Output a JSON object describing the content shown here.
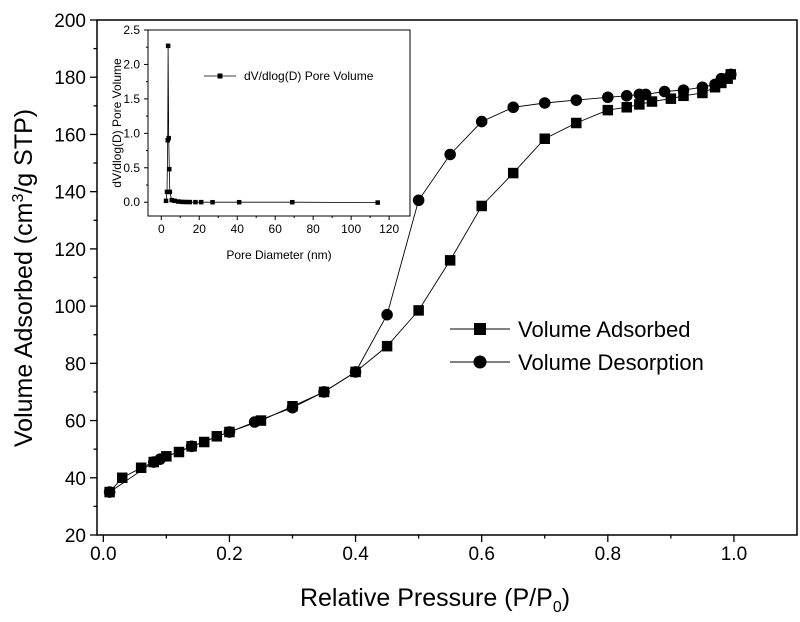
{
  "chart_data": [
    {
      "type": "line",
      "role": "main",
      "title": "",
      "xlabel": "Relative Pressure (P/P",
      "xlabel_sub": "0",
      "xlabel_end": ")",
      "ylabel": "Volume Adsorbed (cm",
      "ylabel_sup": "3",
      "ylabel_end": "/g STP)",
      "xlim": [
        -0.01,
        1.1
      ],
      "ylim": [
        20,
        200
      ],
      "xticks": [
        "0.0",
        "0.2",
        "0.4",
        "0.6",
        "0.8",
        "1.0"
      ],
      "xtick_values": [
        0.0,
        0.2,
        0.4,
        0.6,
        0.8,
        1.0
      ],
      "yticks": [
        "20",
        "40",
        "60",
        "80",
        "100",
        "120",
        "140",
        "160",
        "180",
        "200"
      ],
      "ytick_values": [
        20,
        40,
        60,
        80,
        100,
        120,
        140,
        160,
        180,
        200
      ],
      "grid": false,
      "legend_position": "center-right",
      "series": [
        {
          "name": "Volume Adsorbed",
          "marker": "square",
          "x": [
            0.01,
            0.03,
            0.06,
            0.08,
            0.1,
            0.12,
            0.14,
            0.16,
            0.18,
            0.2,
            0.25,
            0.3,
            0.35,
            0.4,
            0.45,
            0.5,
            0.55,
            0.6,
            0.65,
            0.7,
            0.75,
            0.8,
            0.83,
            0.85,
            0.87,
            0.9,
            0.92,
            0.95,
            0.97,
            0.98,
            0.99,
            0.995
          ],
          "y": [
            35,
            40,
            43.5,
            45.5,
            47.5,
            49,
            51,
            52.5,
            54.5,
            56,
            60,
            65,
            70,
            77,
            86,
            98.5,
            116,
            135,
            146.5,
            158.5,
            164,
            168.5,
            169.5,
            170.5,
            171.5,
            172.5,
            173.5,
            174.5,
            176.5,
            178,
            179.5,
            181
          ]
        },
        {
          "name": "Volume Desorption",
          "marker": "circle",
          "x": [
            0.995,
            0.98,
            0.97,
            0.95,
            0.92,
            0.89,
            0.86,
            0.85,
            0.83,
            0.8,
            0.75,
            0.7,
            0.65,
            0.6,
            0.55,
            0.5,
            0.45,
            0.4,
            0.35,
            0.3,
            0.24,
            0.2,
            0.14,
            0.09,
            0.08,
            0.01
          ],
          "y": [
            181,
            179.5,
            177.5,
            176.5,
            175.5,
            175,
            174,
            174,
            173.5,
            173,
            172,
            171,
            169.5,
            164.5,
            153,
            137,
            97,
            77,
            70,
            64.5,
            59.5,
            56,
            51,
            46.5,
            45.5,
            35
          ]
        }
      ]
    },
    {
      "type": "line",
      "role": "inset",
      "title": "",
      "xlabel": "Pore Diameter (nm)",
      "ylabel": "dV/dlog(D) Pore Volume",
      "xlim": [
        -7,
        131
      ],
      "ylim": [
        -0.2,
        2.5
      ],
      "xticks": [
        "0",
        "20",
        "40",
        "60",
        "80",
        "100",
        "120"
      ],
      "xtick_values": [
        0,
        20,
        40,
        60,
        80,
        100,
        120
      ],
      "yticks": [
        "0.0",
        "0.5",
        "1.0",
        "1.5",
        "2.0",
        "2.5"
      ],
      "ytick_values": [
        0.0,
        0.5,
        1.0,
        1.5,
        2.0,
        2.5
      ],
      "grid": false,
      "legend_position": "top-right",
      "series": [
        {
          "name": "dV/dlog(D) Pore Volume",
          "marker": "square",
          "x": [
            2.5,
            3.0,
            3.4,
            3.6,
            3.9,
            4.2,
            4.5,
            5.5,
            7,
            9,
            11,
            13,
            15,
            18,
            21,
            27,
            41,
            69,
            114
          ],
          "y": [
            0.02,
            0.15,
            0.9,
            2.27,
            0.93,
            0.48,
            0.15,
            0.03,
            0.02,
            0.01,
            0.005,
            0.003,
            0.002,
            0.001,
            0.001,
            0.0,
            0.0,
            0.0,
            -0.005
          ]
        }
      ]
    }
  ]
}
